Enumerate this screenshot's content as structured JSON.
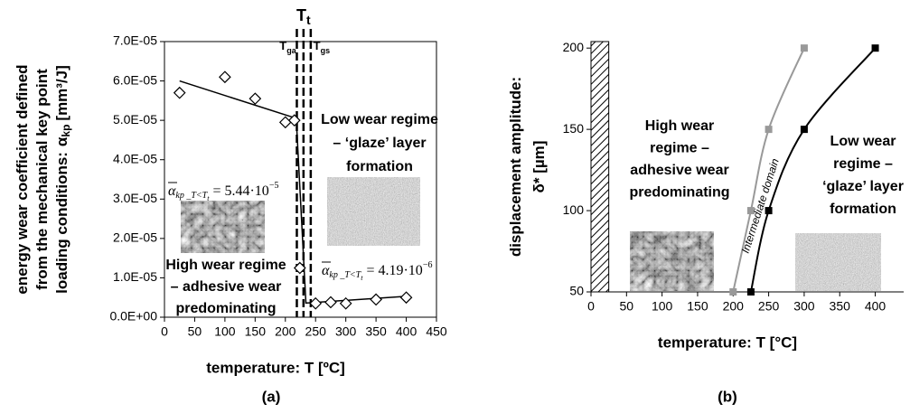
{
  "chart_data": [
    {
      "type": "scatter",
      "panel_label": "(a)",
      "x_label": "temperature: T [ºC]",
      "y_label_lines": [
        "energy wear coefficient defined",
        "from the mechanical key point",
        "loading conditions:"
      ],
      "y_label_symbol": "α",
      "y_label_symbol_sub": "kp",
      "y_label_unit": "[mm³/J]",
      "xlim": [
        0,
        450
      ],
      "xticks": [
        0,
        50,
        100,
        150,
        200,
        250,
        300,
        350,
        400,
        450
      ],
      "ylim": [
        0,
        7e-05
      ],
      "yticks": [
        {
          "value": 0,
          "label": "0.0E+00"
        },
        {
          "value": 1e-05,
          "label": "1.0E-05"
        },
        {
          "value": 2e-05,
          "label": "2.0E-05"
        },
        {
          "value": 3e-05,
          "label": "3.0E-05"
        },
        {
          "value": 4e-05,
          "label": "4.0E-05"
        },
        {
          "value": 5e-05,
          "label": "5.0E-05"
        },
        {
          "value": 6e-05,
          "label": "6.0E-05"
        },
        {
          "value": 7e-05,
          "label": "7.0E-05"
        }
      ],
      "series": [
        {
          "color": "#000000",
          "marker": "diamond",
          "x": [
            25,
            100,
            150,
            200,
            215,
            224,
            250,
            275,
            300,
            350,
            400
          ],
          "values": [
            5.7e-05,
            6.1e-05,
            5.55e-05,
            4.95e-05,
            5e-05,
            1.25e-05,
            3.5e-06,
            3.8e-06,
            3.5e-06,
            4.5e-06,
            5e-06
          ]
        }
      ],
      "trend_line": {
        "color": "#000000",
        "x": [
          25,
          218,
          234,
          400
        ],
        "values": [
          6e-05,
          5.05e-05,
          3.6e-06,
          5.3e-06
        ]
      },
      "transition_lines": {
        "x": [
          219,
          230,
          242
        ],
        "labels": [
          {
            "text": "T",
            "sub": "ga"
          },
          {
            "text": "T",
            "sub": "t"
          },
          {
            "text": "T",
            "sub": "gs"
          }
        ]
      },
      "formulas": [
        {
          "symbol": "α",
          "sub": "kp _T<T",
          "subsub": "t",
          "text": " = 5.44·10",
          "sup": "−5"
        },
        {
          "symbol": "α",
          "sub": "kp _T<T",
          "subsub": "t",
          "text": " = 4.19·10",
          "sup": "−6"
        }
      ],
      "text_blocks": [
        {
          "lines": [
            "Low wear regime",
            "– ‘glaze’ layer",
            "formation"
          ]
        },
        {
          "lines": [
            "High wear regime",
            "– adhesive wear",
            "predominating"
          ]
        }
      ]
    },
    {
      "type": "line",
      "panel_label": "(b)",
      "x_label": "temperature: T [°C]",
      "y_label_lines": [
        "displacement amplitude:",
        "δ* [µm]"
      ],
      "xlim": [
        0,
        440
      ],
      "xticks": [
        0,
        50,
        100,
        150,
        200,
        250,
        300,
        350,
        400
      ],
      "ylim": [
        50,
        204
      ],
      "yticks": [
        50,
        100,
        150,
        200
      ],
      "series": [
        {
          "color": "#999999",
          "marker": "square",
          "x": [
            200,
            225,
            250,
            300
          ],
          "values": [
            50,
            100,
            150,
            200
          ]
        },
        {
          "color": "#000000",
          "marker": "square",
          "x": [
            225,
            250,
            300,
            400
          ],
          "values": [
            50,
            100,
            150,
            200
          ]
        }
      ],
      "hatched_region": {
        "x": [
          0,
          25
        ]
      },
      "annotation": "Intermediate domain",
      "text_blocks": [
        {
          "lines": [
            "High wear",
            "regime –",
            "adhesive wear",
            "predominating"
          ]
        },
        {
          "lines": [
            "Low wear",
            "regime –",
            "‘glaze’ layer",
            "formation"
          ]
        }
      ]
    }
  ]
}
